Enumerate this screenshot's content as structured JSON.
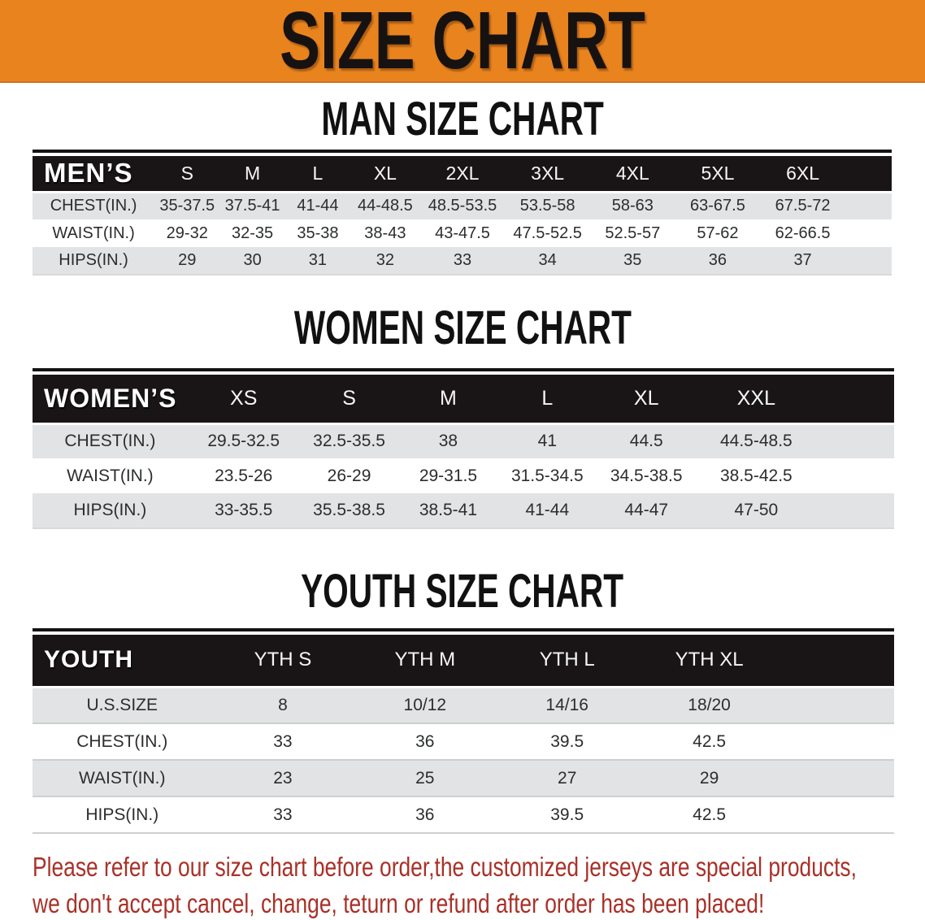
{
  "banner": {
    "title": "SIZE CHART"
  },
  "sections": [
    {
      "heading": "MAN SIZE CHART",
      "table": {
        "corner_label": "MEN’S",
        "columns": [
          "S",
          "M",
          "L",
          "XL",
          "2XL",
          "3XL",
          "4XL",
          "5XL",
          "6XL"
        ],
        "rows": [
          {
            "label": "CHEST(IN.)",
            "values": [
              "35-37.5",
              "37.5-41",
              "41-44",
              "44-48.5",
              "48.5-53.5",
              "53.5-58",
              "58-63",
              "63-67.5",
              "67.5-72"
            ]
          },
          {
            "label": "WAIST(IN.)",
            "values": [
              "29-32",
              "32-35",
              "35-38",
              "38-43",
              "43-47.5",
              "47.5-52.5",
              "52.5-57",
              "57-62",
              "62-66.5"
            ]
          },
          {
            "label": "HIPS(IN.)",
            "values": [
              "29",
              "30",
              "31",
              "32",
              "33",
              "34",
              "35",
              "36",
              "37"
            ]
          }
        ]
      }
    },
    {
      "heading": "WOMEN SIZE CHART",
      "table": {
        "corner_label": "WOMEN’S",
        "columns": [
          "XS",
          "S",
          "M",
          "L",
          "XL",
          "XXL"
        ],
        "rows": [
          {
            "label": "CHEST(IN.)",
            "values": [
              "29.5-32.5",
              "32.5-35.5",
              "38",
              "41",
              "44.5",
              "44.5-48.5"
            ]
          },
          {
            "label": "WAIST(IN.)",
            "values": [
              "23.5-26",
              "26-29",
              "29-31.5",
              "31.5-34.5",
              "34.5-38.5",
              "38.5-42.5"
            ]
          },
          {
            "label": "HIPS(IN.)",
            "values": [
              "33-35.5",
              "35.5-38.5",
              "38.5-41",
              "41-44",
              "44-47",
              "47-50"
            ]
          }
        ]
      }
    },
    {
      "heading": "YOUTH SIZE CHART",
      "table": {
        "corner_label": "YOUTH",
        "columns": [
          "YTH S",
          "YTH M",
          "YTH L",
          "YTH XL"
        ],
        "rows": [
          {
            "label": "U.S.SIZE",
            "values": [
              "8",
              "10/12",
              "14/16",
              "18/20"
            ]
          },
          {
            "label": "CHEST(IN.)",
            "values": [
              "33",
              "36",
              "39.5",
              "42.5"
            ]
          },
          {
            "label": "WAIST(IN.)",
            "values": [
              "23",
              "25",
              "27",
              "29"
            ]
          },
          {
            "label": "HIPS(IN.)",
            "values": [
              "33",
              "36",
              "39.5",
              "42.5"
            ]
          }
        ]
      }
    }
  ],
  "disclaimer": {
    "line1": "Please refer to our size chart before order,the customized jerseys are special products,",
    "line2": "we don't accept cancel, change, teturn or refund after order has been placed!"
  },
  "colors": {
    "banner_bg": "#E8831E",
    "banner_text": "#171212",
    "header_bar_bg": "#191516",
    "header_bar_text": "#F6F6F6",
    "stripe_row_bg": "#E1E3E5",
    "white_row_bg": "#FFFFFF",
    "disclaimer_text": "#A93128"
  }
}
